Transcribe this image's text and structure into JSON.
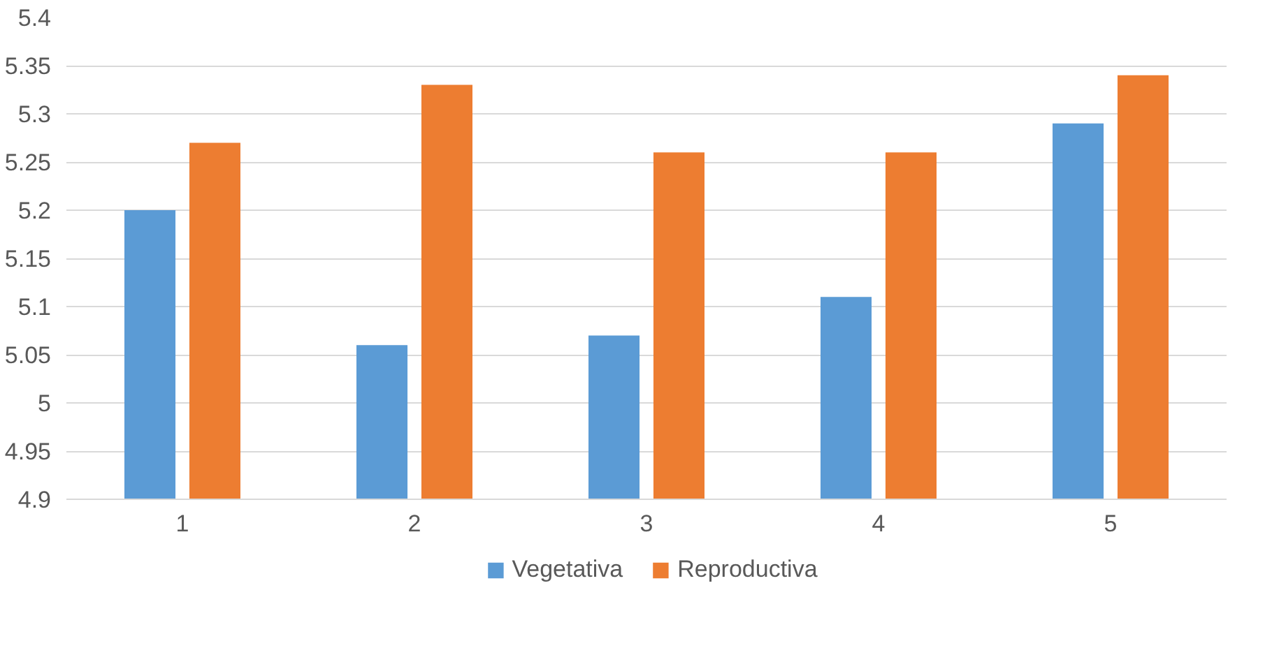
{
  "chart_data": {
    "type": "bar",
    "categories": [
      "1",
      "2",
      "3",
      "4",
      "5"
    ],
    "series": [
      {
        "name": "Vegetativa",
        "color": "#5b9bd5",
        "values": [
          5.2,
          5.06,
          5.07,
          5.11,
          5.29
        ]
      },
      {
        "name": "Reproductiva",
        "color": "#ed7d31",
        "values": [
          5.27,
          5.33,
          5.26,
          5.26,
          5.34
        ]
      }
    ],
    "ylim": [
      4.9,
      5.4
    ],
    "yticks": [
      4.9,
      4.95,
      5,
      5.05,
      5.1,
      5.15,
      5.2,
      5.25,
      5.3,
      5.35,
      5.4
    ],
    "grid": "y",
    "legend": "bottom"
  }
}
